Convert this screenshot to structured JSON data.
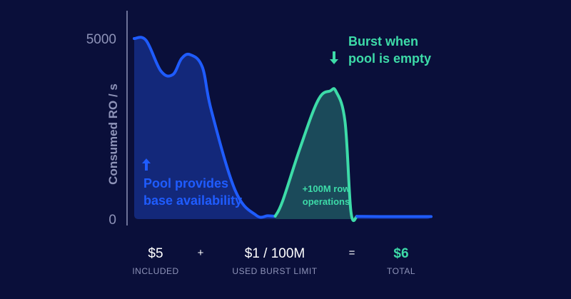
{
  "chart_data": {
    "type": "area",
    "ylabel": "Consumed RO / s",
    "ylim": [
      0,
      5000
    ],
    "yticks": [
      {
        "value": 5000,
        "label": "5000"
      },
      {
        "value": 0,
        "label": "0"
      }
    ],
    "x_range": [
      0,
      100
    ],
    "series": [
      {
        "role": "base",
        "color": "#1f5cff",
        "x": [
          0,
          4,
          9,
          13,
          16,
          19,
          23,
          26,
          34,
          41,
          45,
          47.5
        ],
        "y": [
          5000,
          4950,
          4100,
          4000,
          4450,
          4550,
          4200,
          3000,
          800,
          110,
          90,
          80
        ]
      },
      {
        "role": "burst",
        "color": "#3ddba8",
        "x": [
          47.5,
          50,
          56,
          62,
          66,
          68,
          71,
          73,
          75
        ],
        "y": [
          80,
          500,
          2000,
          3300,
          3550,
          3530,
          2700,
          200,
          75
        ]
      },
      {
        "role": "base",
        "color": "#1f5cff",
        "x": [
          75,
          83,
          100
        ],
        "y": [
          75,
          70,
          70
        ]
      }
    ],
    "annotations": [
      {
        "lines": [
          "Pool provides",
          "base availability"
        ],
        "color": "#1f5cff",
        "arrow": "up"
      },
      {
        "lines": [
          "Burst when",
          "pool is empty"
        ],
        "color": "#3ddba8",
        "arrow": "down"
      },
      {
        "lines": [
          "+100M row",
          "operations"
        ],
        "color": "#3ddba8"
      }
    ],
    "colors": {
      "background": "#0a0f3a",
      "base_line": "#1f5cff",
      "base_fill": "#13287a",
      "burst_line": "#3ddba8",
      "burst_fill": "#1b4a5a",
      "axis": "#8e93b8"
    }
  },
  "summary": {
    "included": {
      "value": "$5",
      "caption": "INCLUDED"
    },
    "plus": "+",
    "burst": {
      "value": "$1 / 100M",
      "caption": "USED BURST LIMIT"
    },
    "equals": "=",
    "total": {
      "value": "$6",
      "caption": "TOTAL"
    }
  }
}
